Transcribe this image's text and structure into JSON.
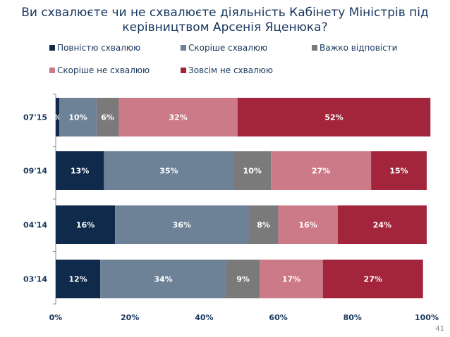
{
  "title": "Ви схвалюєте чи не схвалюєте діяльність Кабінету Міністрів під керівництвом Арсенія Яценюка?",
  "page_number": "41",
  "chart_data": {
    "type": "bar",
    "orientation": "horizontal",
    "stacked": true,
    "title": "Ви схвалюєте чи не схвалюєте діяльність Кабінету Міністрів під керівництвом Арсенія Яценюка?",
    "categories": [
      "07'15",
      "09'14",
      "04'14",
      "03'14"
    ],
    "series": [
      {
        "name": "Повністю схвалюю",
        "color": "#0f2a4a",
        "values": [
          1,
          13,
          16,
          12
        ]
      },
      {
        "name": "Скоріше схвалюю",
        "color": "#6d8297",
        "values": [
          10,
          35,
          36,
          34
        ]
      },
      {
        "name": "Важко відповісти",
        "color": "#7a7a7a",
        "values": [
          6,
          10,
          8,
          9
        ]
      },
      {
        "name": "Скоріше не схвалюю",
        "color": "#cc7a87",
        "values": [
          32,
          27,
          16,
          17
        ]
      },
      {
        "name": "Зовсім не схвалюю",
        "color": "#a3253c",
        "values": [
          52,
          15,
          24,
          27
        ]
      }
    ],
    "labels": [
      [
        "%",
        "10%",
        "6%",
        "32%",
        "52%"
      ],
      [
        "13%",
        "35%",
        "10%",
        "27%",
        "15%"
      ],
      [
        "16%",
        "36%",
        "8%",
        "16%",
        "24%"
      ],
      [
        "12%",
        "34%",
        "9%",
        "17%",
        "27%"
      ]
    ],
    "xlim": [
      0,
      100
    ],
    "xticks": [
      "0%",
      "20%",
      "40%",
      "60%",
      "80%",
      "100%"
    ],
    "legend_position": "top",
    "grid": false
  }
}
